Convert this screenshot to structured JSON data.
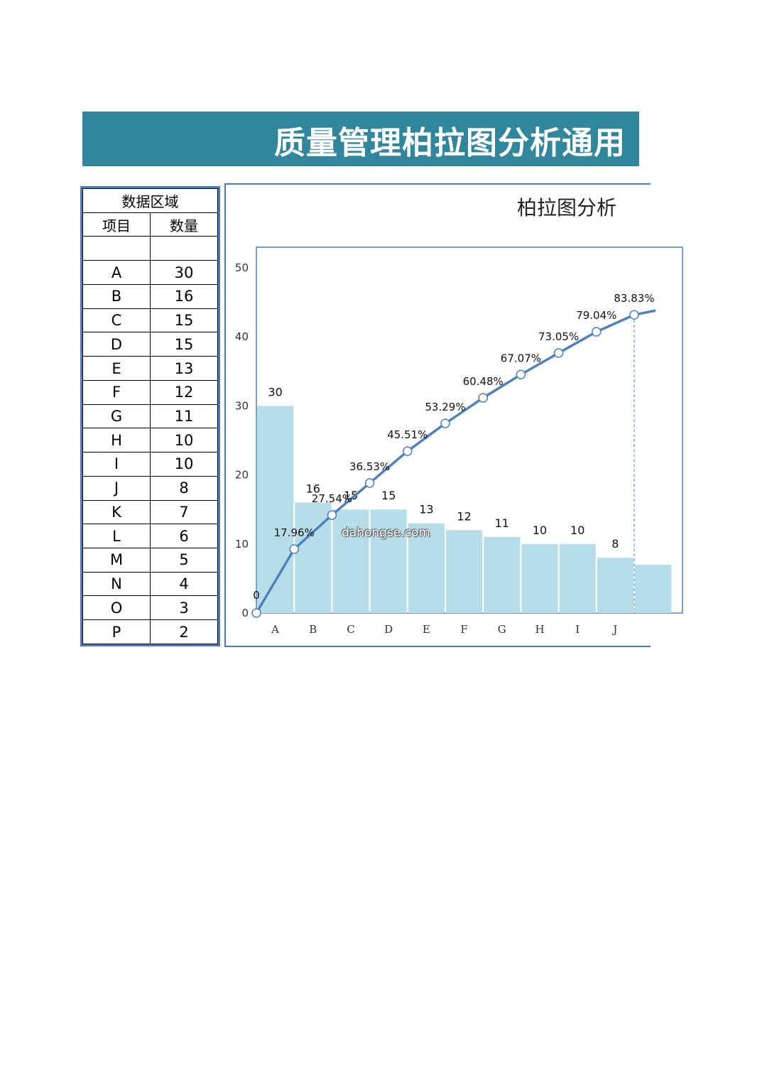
{
  "title": "质量管理柏拉图分析通用",
  "table": {
    "header": "数据区域",
    "col1": "项目",
    "col2": "数量",
    "rows": [
      {
        "item": "A",
        "qty": "30"
      },
      {
        "item": "B",
        "qty": "16"
      },
      {
        "item": "C",
        "qty": "15"
      },
      {
        "item": "D",
        "qty": "15"
      },
      {
        "item": "E",
        "qty": "13"
      },
      {
        "item": "F",
        "qty": "12"
      },
      {
        "item": "G",
        "qty": "11"
      },
      {
        "item": "H",
        "qty": "10"
      },
      {
        "item": "I",
        "qty": "10"
      },
      {
        "item": "J",
        "qty": "8"
      },
      {
        "item": "K",
        "qty": "7"
      },
      {
        "item": "L",
        "qty": "6"
      },
      {
        "item": "M",
        "qty": "5"
      },
      {
        "item": "N",
        "qty": "4"
      },
      {
        "item": "O",
        "qty": "3"
      },
      {
        "item": "P",
        "qty": "2"
      }
    ]
  },
  "watermark": "dahongse.com",
  "chart_data": {
    "type": "bar",
    "title": "柏拉图分析",
    "categories": [
      "A",
      "B",
      "C",
      "D",
      "E",
      "F",
      "G",
      "H",
      "I",
      "J"
    ],
    "values": [
      30,
      16,
      15,
      15,
      13,
      12,
      11,
      10,
      10,
      8
    ],
    "value_labels": [
      "30",
      "16",
      "15",
      "15",
      "13",
      "12",
      "11",
      "10",
      "10",
      "8"
    ],
    "cumulative_line": {
      "x_positions": [
        0,
        1,
        2,
        3,
        4,
        5,
        6,
        7,
        8,
        9,
        10
      ],
      "values": [
        0,
        9.26,
        14.19,
        18.83,
        23.44,
        27.46,
        31.16,
        34.54,
        37.66,
        40.73,
        43.19
      ],
      "labels": [
        "0",
        "17.96%",
        "27.54%",
        "36.53%",
        "45.51%",
        "53.29%",
        "60.48%",
        "67.07%",
        "73.05%",
        "79.04%",
        "83.83%"
      ]
    },
    "y_ticks": [
      "0",
      "10",
      "20",
      "30",
      "40",
      "50"
    ],
    "ylim": [
      0,
      50
    ],
    "bar_color": "#b7dde8",
    "line_color": "#4f81bd"
  }
}
